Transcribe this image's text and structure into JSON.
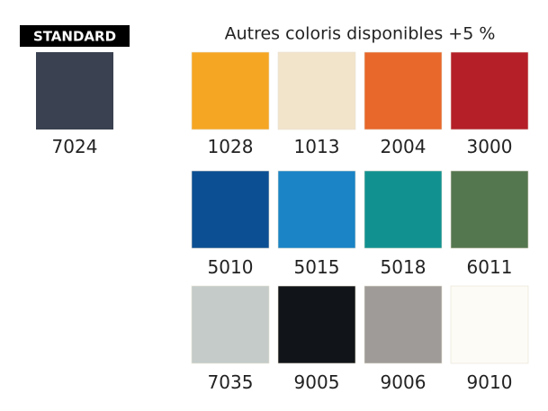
{
  "standard": {
    "badge": "STANDARD",
    "swatch": {
      "code": "7024",
      "color": "#3a4150"
    }
  },
  "options": {
    "title": "Autres coloris disponibles +5 %",
    "swatches": [
      {
        "code": "1028",
        "color": "#f5a623"
      },
      {
        "code": "1013",
        "color": "#f2e4cb"
      },
      {
        "code": "2004",
        "color": "#e8672a"
      },
      {
        "code": "3000",
        "color": "#b41f28"
      },
      {
        "code": "5010",
        "color": "#0c4f93"
      },
      {
        "code": "5015",
        "color": "#1a84c6"
      },
      {
        "code": "5018",
        "color": "#119290"
      },
      {
        "code": "6011",
        "color": "#557750"
      },
      {
        "code": "7035",
        "color": "#c4cbc9"
      },
      {
        "code": "9005",
        "color": "#111418"
      },
      {
        "code": "9006",
        "color": "#9e9b98"
      },
      {
        "code": "9010",
        "color": "#fdfbf5"
      }
    ]
  }
}
